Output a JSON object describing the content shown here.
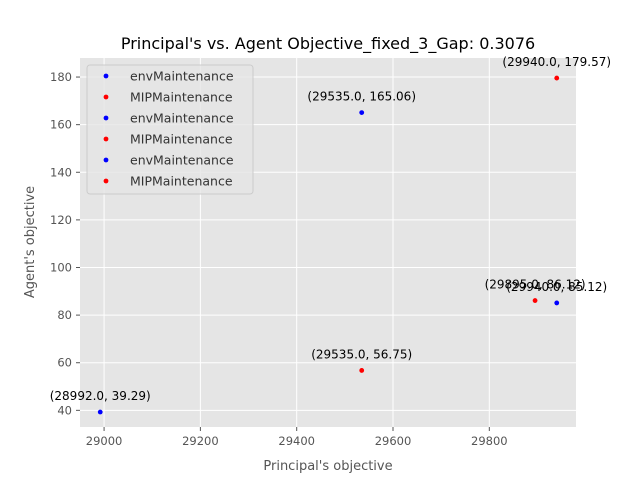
{
  "chart_data": {
    "type": "scatter",
    "title": "Principal's vs. Agent Objective_fixed_3_Gap: 0.3076",
    "xlabel": "Principal's objective",
    "ylabel": "Agent's objective",
    "xlim": [
      28950,
      29980
    ],
    "ylim": [
      33,
      188
    ],
    "xticks": [
      29000,
      29200,
      29400,
      29600,
      29800
    ],
    "yticks": [
      40,
      60,
      80,
      100,
      120,
      140,
      160,
      180
    ],
    "grid": true,
    "legend_location": "upper left",
    "series": [
      {
        "name": "envMaintenance",
        "color": "#0000ff",
        "points": [
          [
            28992.0,
            39.29
          ]
        ]
      },
      {
        "name": "MIPMaintenance",
        "color": "#ff0000",
        "points": [
          [
            29535.0,
            56.75
          ]
        ]
      },
      {
        "name": "envMaintenance",
        "color": "#0000ff",
        "points": [
          [
            29535.0,
            165.06
          ]
        ]
      },
      {
        "name": "MIPMaintenance",
        "color": "#ff0000",
        "points": [
          [
            29895.0,
            86.12
          ]
        ]
      },
      {
        "name": "envMaintenance",
        "color": "#0000ff",
        "points": [
          [
            29940.0,
            85.12
          ]
        ]
      },
      {
        "name": "MIPMaintenance",
        "color": "#ff0000",
        "points": [
          [
            29940.0,
            179.57
          ]
        ]
      }
    ],
    "annotations": [
      {
        "text": "(28992.0, 39.29)",
        "x": 28992.0,
        "y": 39.29
      },
      {
        "text": "(29535.0, 56.75)",
        "x": 29535.0,
        "y": 56.75
      },
      {
        "text": "(29535.0, 165.06)",
        "x": 29535.0,
        "y": 165.06
      },
      {
        "text": "(29895.0, 86.12)",
        "x": 29895.0,
        "y": 86.12
      },
      {
        "text": "(29940.0, 85.12)",
        "x": 29940.0,
        "y": 85.12
      },
      {
        "text": "(29940.0, 179.57)",
        "x": 29940.0,
        "y": 179.57
      }
    ],
    "colors": {
      "background": "#e5e5e5",
      "grid": "#ffffff"
    }
  }
}
